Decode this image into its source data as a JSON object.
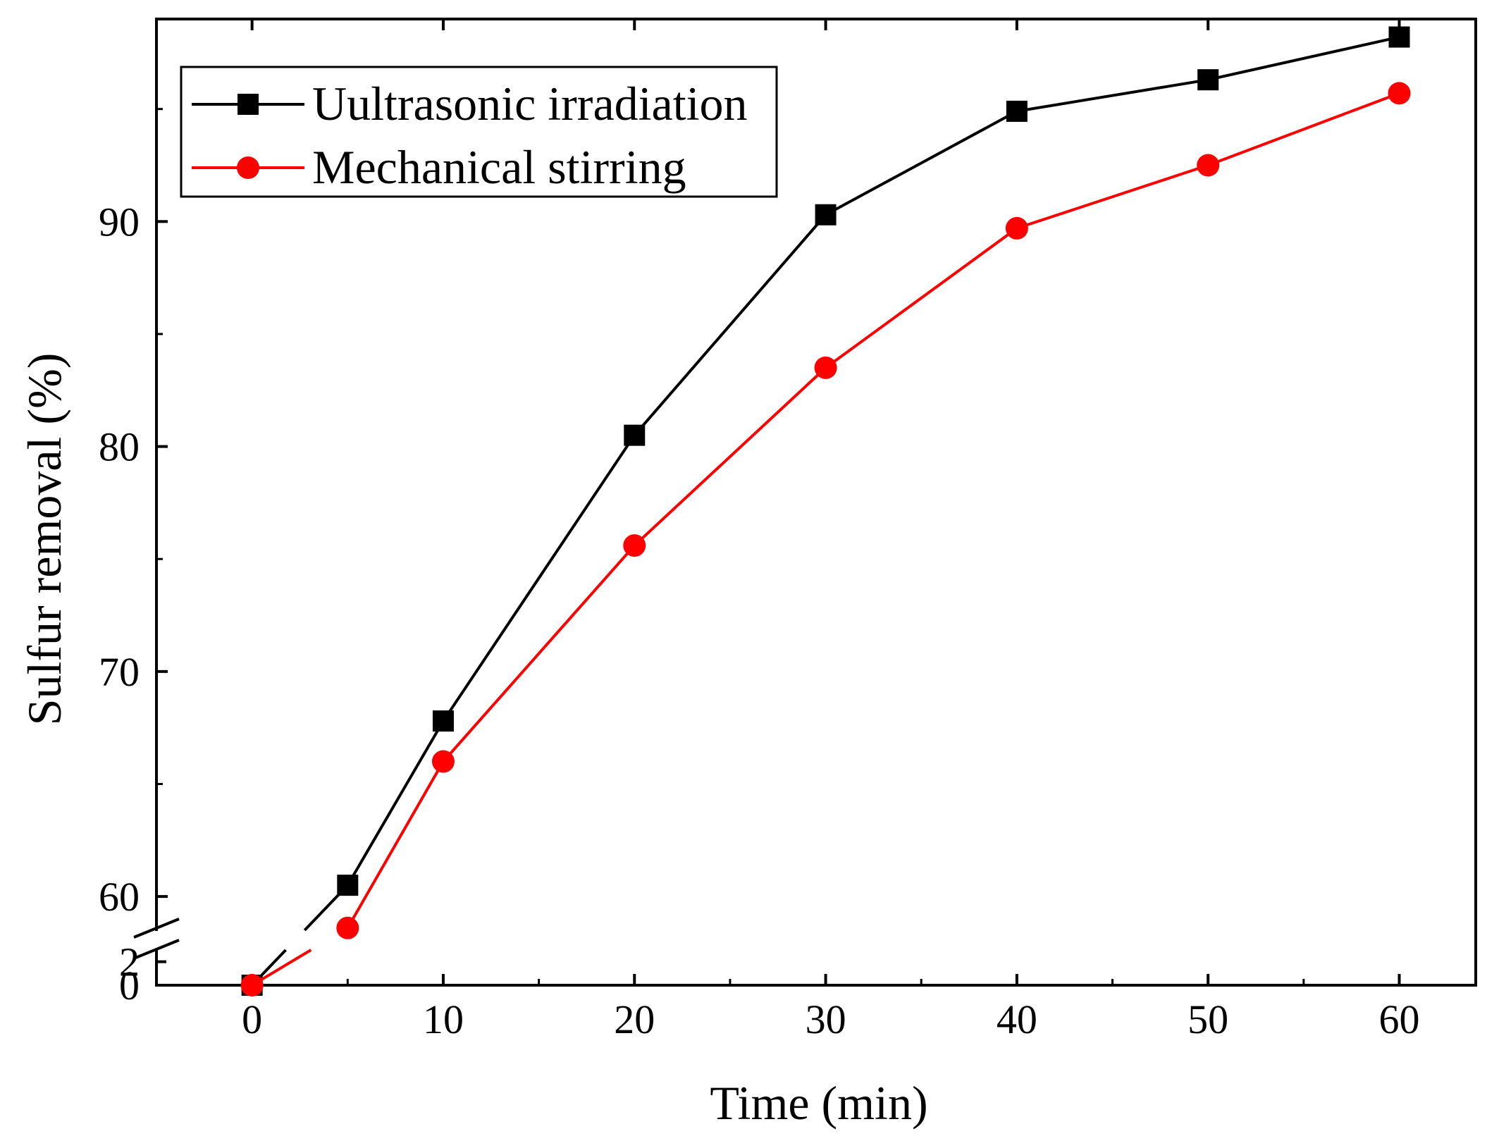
{
  "chart_data": {
    "type": "line",
    "title": "",
    "xlabel": "Time (min)",
    "ylabel": "Sulfur removal (%)",
    "xlim": [
      -5,
      64
    ],
    "x_ticks": [
      0,
      10,
      20,
      30,
      40,
      50,
      60
    ],
    "x_tick_labels": [
      "0",
      "10",
      "20",
      "30",
      "40",
      "50",
      "60"
    ],
    "ylim_upper": [
      58.5,
      99
    ],
    "ylim_lower": [
      0,
      3
    ],
    "axis_break": true,
    "y_ticks_upper": [
      60,
      70,
      80,
      90
    ],
    "y_tick_labels_upper": [
      "60",
      "70",
      "80",
      "90"
    ],
    "y_ticks_lower": [
      0,
      2
    ],
    "y_tick_labels_lower": [
      "0",
      "2"
    ],
    "grid": false,
    "legend_position": "top-left",
    "series": [
      {
        "name": "Uultrasonic irradiation",
        "color": "#000000",
        "marker": "square",
        "x": [
          0,
          5,
          10,
          20,
          30,
          40,
          50,
          60
        ],
        "y": [
          0,
          60.5,
          67.8,
          80.5,
          90.3,
          94.9,
          96.3,
          98.2
        ]
      },
      {
        "name": "Mechanical stirring",
        "color": "#ff0000",
        "marker": "circle",
        "x": [
          0,
          5,
          10,
          20,
          30,
          40,
          50,
          60
        ],
        "y": [
          0,
          58.6,
          66.0,
          75.6,
          83.5,
          89.7,
          92.5,
          95.7
        ]
      }
    ]
  }
}
